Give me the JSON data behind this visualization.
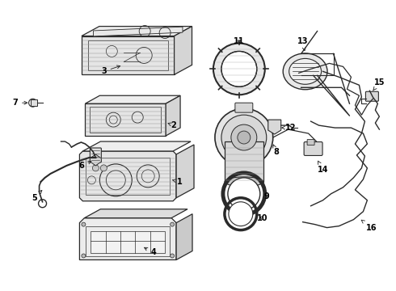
{
  "bg_color": "#ffffff",
  "line_color": "#2a2a2a",
  "figsize": [
    4.9,
    3.6
  ],
  "dpi": 100,
  "hatch_color": "#555555",
  "label_fs": 7.0
}
